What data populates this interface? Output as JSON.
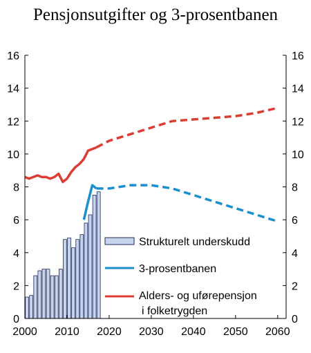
{
  "chart_data": {
    "type": "bar",
    "title": "Pensjonsutgifter og 3-prosentbanen",
    "xlabel": "",
    "ylabel": "",
    "xlim": [
      2000,
      2062
    ],
    "ylim": [
      0,
      16
    ],
    "y_ticks": [
      "0",
      "2",
      "4",
      "6",
      "8",
      "10",
      "12",
      "14",
      "16"
    ],
    "x_ticks": [
      "2000",
      "2010",
      "2020",
      "2030",
      "2040",
      "2050",
      "2060"
    ],
    "grid": false,
    "legend_position": "center-right",
    "colors": {
      "bars_fill": "#c6d4ec",
      "bars_stroke": "#1f2a5c",
      "three_percent": "#1a8fd0",
      "pension": "#dd3c32"
    },
    "series": [
      {
        "name": "Strukturelt underskudd",
        "type": "bar",
        "x": [
          2000,
          2001,
          2002,
          2003,
          2004,
          2005,
          2006,
          2007,
          2008,
          2009,
          2010,
          2011,
          2012,
          2013,
          2014,
          2015,
          2016,
          2017
        ],
        "values": [
          1.3,
          1.4,
          2.6,
          2.9,
          3.0,
          3.0,
          2.6,
          2.6,
          3.0,
          4.8,
          4.9,
          4.3,
          4.8,
          5.1,
          5.8,
          6.3,
          7.5,
          7.7
        ]
      },
      {
        "name": "3-prosentbanen",
        "type": "line",
        "style": "solid",
        "x": [
          2014,
          2015,
          2016,
          2017
        ],
        "values": [
          6.0,
          7.1,
          8.1,
          7.9
        ]
      },
      {
        "name": "3-prosentbanen",
        "type": "line",
        "style": "dashed",
        "x": [
          2017,
          2020,
          2025,
          2030,
          2035,
          2040,
          2045,
          2050,
          2055,
          2060
        ],
        "values": [
          7.9,
          7.9,
          8.1,
          8.1,
          7.9,
          7.5,
          7.1,
          6.7,
          6.3,
          5.9
        ]
      },
      {
        "name": "Alders- og uførepensjon i folketrygden",
        "type": "line",
        "style": "solid",
        "x": [
          2000,
          2001,
          2002,
          2003,
          2004,
          2005,
          2006,
          2007,
          2008,
          2009,
          2010,
          2011,
          2012,
          2013,
          2014,
          2015,
          2016,
          2017
        ],
        "values": [
          8.6,
          8.5,
          8.6,
          8.7,
          8.6,
          8.6,
          8.5,
          8.6,
          8.8,
          8.3,
          8.5,
          8.9,
          9.2,
          9.4,
          9.7,
          10.2,
          10.3,
          10.4
        ]
      },
      {
        "name": "Alders- og uførepensjon i folketrygden",
        "type": "line",
        "style": "dashed",
        "x": [
          2017,
          2020,
          2025,
          2030,
          2035,
          2040,
          2045,
          2050,
          2055,
          2060
        ],
        "values": [
          10.4,
          10.8,
          11.2,
          11.6,
          12.0,
          12.1,
          12.2,
          12.3,
          12.5,
          12.8
        ]
      }
    ],
    "legend": [
      {
        "label": "Strukturelt underskudd",
        "line2": ""
      },
      {
        "label": "3-prosentbanen",
        "line2": ""
      },
      {
        "label": "Alders- og uførepensjon",
        "line2": "i  folketrygden"
      }
    ]
  }
}
